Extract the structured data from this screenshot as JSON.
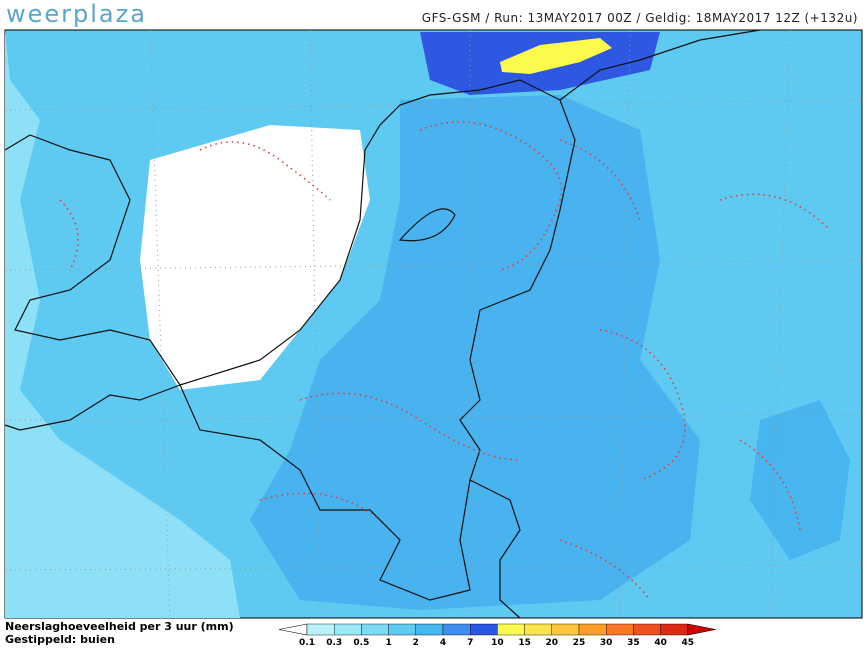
{
  "header": {
    "brand": "weerplaza",
    "run_info": "GFS-GSM / Run: 13MAY2017 00Z / Geldig: 18MAY2017 12Z (+132u)"
  },
  "legend": {
    "title": "Neerslaghoeveelheid per 3 uur (mm)",
    "subtitle": "Gestippeld: buien",
    "ticks": [
      "0.1",
      "0.3",
      "0.5",
      "1",
      "2",
      "4",
      "7",
      "10",
      "15",
      "20",
      "25",
      "30",
      "35",
      "40",
      "45"
    ],
    "low_color": "#ffffff",
    "colors": [
      "#b9f2fb",
      "#9be8f7",
      "#7ddaf3",
      "#5fcbf1",
      "#47b5ee",
      "#3f8eee",
      "#2b55e4",
      "#fbfb4e",
      "#fde34c",
      "#fdc63b",
      "#fb9f2a",
      "#f87828",
      "#ee5020",
      "#dc2a14"
    ],
    "high_color": "#d00000"
  }
}
